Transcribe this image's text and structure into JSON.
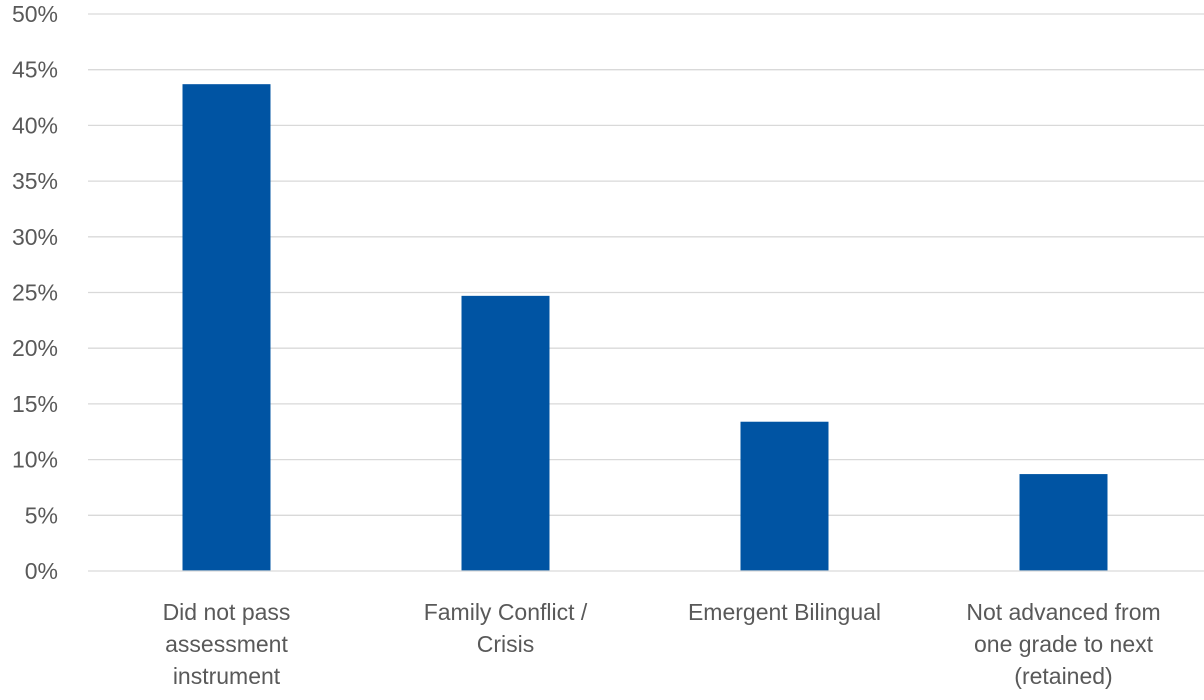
{
  "chart_data": {
    "type": "bar",
    "title": "",
    "xlabel": "",
    "ylabel": "",
    "categories": [
      [
        "Did not pass",
        "assessment",
        "instrument"
      ],
      [
        "Family Conflict /",
        "Crisis"
      ],
      [
        "Emergent Bilingual"
      ],
      [
        "Not advanced from",
        "one grade to next",
        "(retained)"
      ]
    ],
    "values": [
      43.7,
      24.7,
      13.4,
      8.7
    ],
    "ylim": [
      0,
      50
    ],
    "yticks": [
      0,
      5,
      10,
      15,
      20,
      25,
      30,
      35,
      40,
      45,
      50
    ],
    "ytick_labels": [
      "0%",
      "5%",
      "10%",
      "15%",
      "20%",
      "25%",
      "30%",
      "35%",
      "40%",
      "45%",
      "50%"
    ],
    "grid": true,
    "legend": "none",
    "bar_color": "#0054a3"
  }
}
